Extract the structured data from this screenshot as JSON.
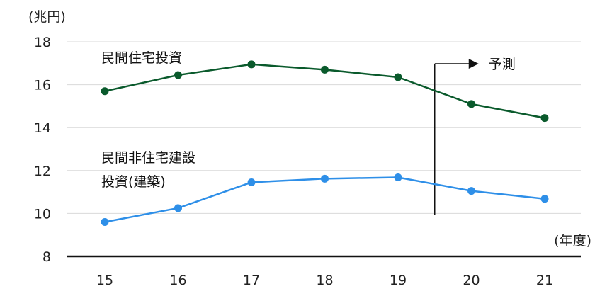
{
  "chart_data": {
    "type": "line",
    "ylabel": "(兆円)",
    "xlabel": "(年度)",
    "ylim": [
      8,
      18
    ],
    "yticks": [
      8,
      10,
      12,
      14,
      16,
      18
    ],
    "categories": [
      "15",
      "16",
      "17",
      "18",
      "19",
      "20",
      "21"
    ],
    "grid": true,
    "series": [
      {
        "name": "民間住宅投資",
        "color": "#0a5a2c",
        "values": [
          15.7,
          16.45,
          16.95,
          16.7,
          16.35,
          15.1,
          14.45
        ]
      },
      {
        "name_lines": [
          "民間非住宅建設",
          "投資(建築)"
        ],
        "color": "#2e8fe8",
        "values": [
          9.6,
          10.25,
          11.45,
          11.62,
          11.68,
          11.05,
          10.68
        ]
      }
    ],
    "forecast": {
      "label": "予測",
      "after_category": "19"
    }
  }
}
